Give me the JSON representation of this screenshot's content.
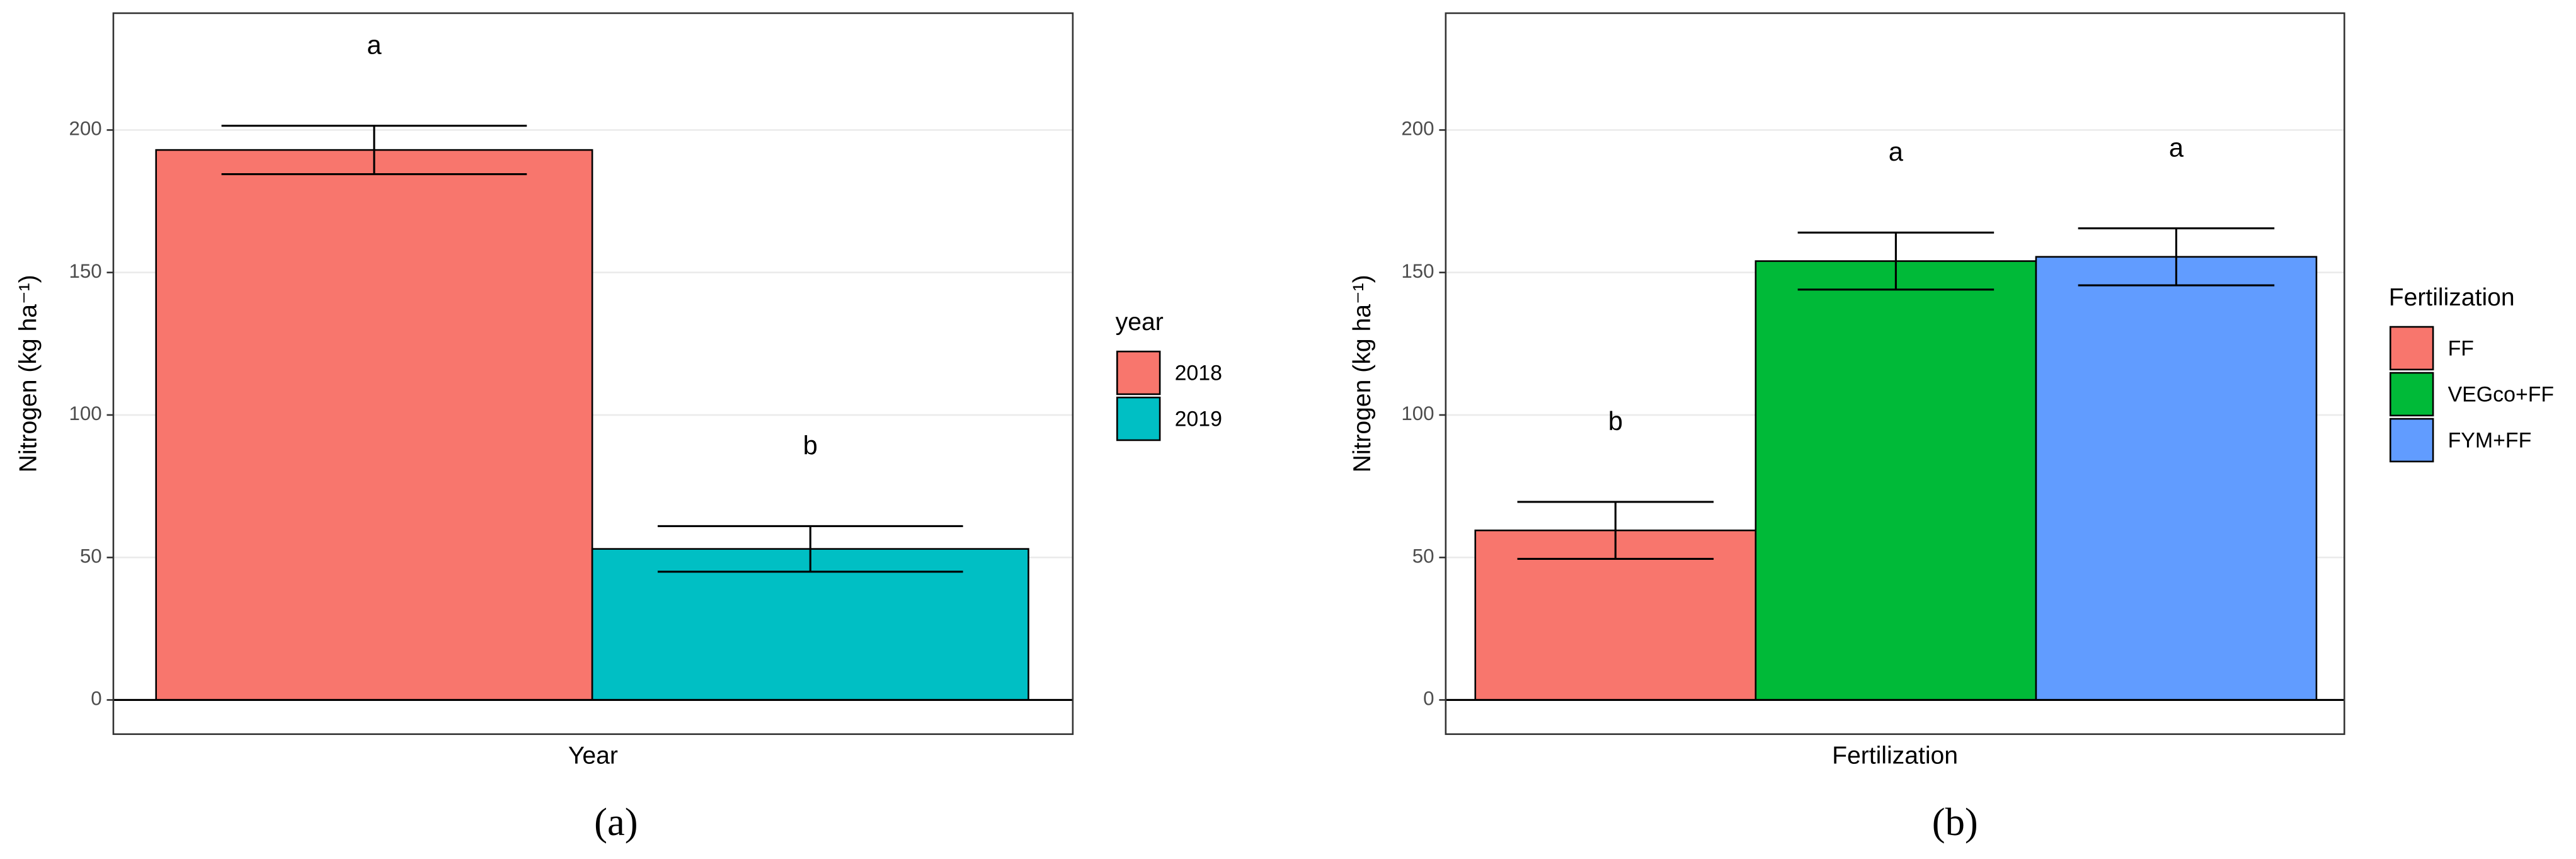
{
  "chart_data": [
    {
      "type": "bar",
      "y_label": "Nitrogen (kg ha⁻¹)",
      "x_label": "Year",
      "legend_title": "year",
      "panel_label": "(a)",
      "ylim": [
        -12,
        241
      ],
      "yticks": [
        0,
        50,
        100,
        150,
        200
      ],
      "grid": true,
      "legend": "right",
      "series": [
        {
          "name": "2018",
          "color": "#F8766D",
          "values": [
            193
          ],
          "errors": [
            8.5
          ],
          "letters": [
            "a"
          ]
        },
        {
          "name": "2019",
          "color": "#00BFC4",
          "values": [
            53
          ],
          "errors": [
            8
          ],
          "letters": [
            "b"
          ]
        }
      ]
    },
    {
      "type": "bar",
      "y_label": "Nitrogen (kg ha⁻¹)",
      "x_label": "Fertilization",
      "legend_title": "Fertilization",
      "panel_label": "(b)",
      "ylim": [
        -12,
        241
      ],
      "yticks": [
        0,
        50,
        100,
        150,
        200
      ],
      "grid": true,
      "legend": "right",
      "series": [
        {
          "name": "FF",
          "color": "#F8766D",
          "values": [
            59.5
          ],
          "errors": [
            10
          ],
          "letters": [
            "b"
          ]
        },
        {
          "name": "VEGco+FF",
          "color": "#00BA38",
          "values": [
            154
          ],
          "errors": [
            10
          ],
          "letters": [
            "a"
          ]
        },
        {
          "name": "FYM+FF",
          "color": "#619CFF",
          "values": [
            155.5
          ],
          "errors": [
            10
          ],
          "letters": [
            "a"
          ]
        }
      ]
    }
  ]
}
